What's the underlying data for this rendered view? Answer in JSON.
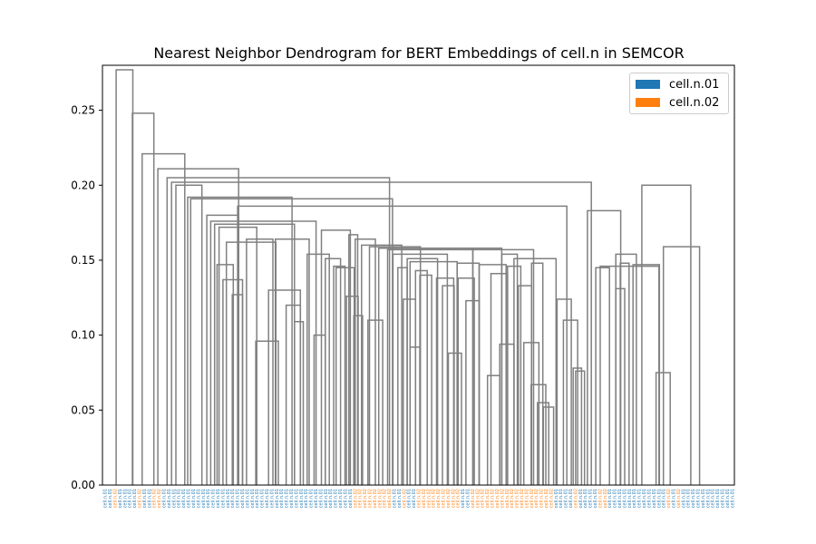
{
  "chart_data": {
    "type": "dendrogram",
    "title": "Nearest Neighbor Dendrogram for BERT Embeddings of cell.n in SEMCOR",
    "ylim": [
      0,
      0.28
    ],
    "yticks": [
      {
        "value": 0.0,
        "label": "0.00"
      },
      {
        "value": 0.05,
        "label": "0.05"
      },
      {
        "value": 0.1,
        "label": "0.10"
      },
      {
        "value": 0.15,
        "label": "0.15"
      },
      {
        "value": 0.2,
        "label": "0.20"
      },
      {
        "value": 0.25,
        "label": "0.25"
      }
    ],
    "legend": {
      "position": "top-right",
      "entries": [
        {
          "label": "cell.n.01",
          "color": "#1f77b4"
        },
        {
          "label": "cell.n.02",
          "color": "#ff7f0e"
        }
      ]
    },
    "link_color": "#808080",
    "leaf_labels": [
      "cell.n.01",
      "cell.n.01",
      "cell.n.02",
      "cell.n.01",
      "cell.n.01",
      "cell.n.01",
      "cell.n.01",
      "cell.n.02",
      "cell.n.01",
      "cell.n.01",
      "cell.n.02",
      "cell.n.02",
      "cell.n.01",
      "cell.n.01",
      "cell.n.01",
      "cell.n.01",
      "cell.n.01",
      "cell.n.01",
      "cell.n.01",
      "cell.n.01",
      "cell.n.01",
      "cell.n.01",
      "cell.n.01",
      "cell.n.01",
      "cell.n.01",
      "cell.n.01",
      "cell.n.01",
      "cell.n.01",
      "cell.n.01",
      "cell.n.01",
      "cell.n.01",
      "cell.n.01",
      "cell.n.01",
      "cell.n.01",
      "cell.n.01",
      "cell.n.01",
      "cell.n.01",
      "cell.n.01",
      "cell.n.01",
      "cell.n.01",
      "cell.n.01",
      "cell.n.01",
      "cell.n.01",
      "cell.n.01",
      "cell.n.01",
      "cell.n.01",
      "cell.n.01",
      "cell.n.01",
      "cell.n.01",
      "cell.n.01",
      "cell.n.01",
      "cell.n.02",
      "cell.n.02",
      "cell.n.02",
      "cell.n.02",
      "cell.n.02",
      "cell.n.02",
      "cell.n.02",
      "cell.n.02",
      "cell.n.01",
      "cell.n.01",
      "cell.n.02",
      "cell.n.01",
      "cell.n.01",
      "cell.n.02",
      "cell.n.02",
      "cell.n.02",
      "cell.n.02",
      "cell.n.02",
      "cell.n.02",
      "cell.n.02",
      "cell.n.02",
      "cell.n.02",
      "cell.n.01",
      "cell.n.01",
      "cell.n.02",
      "cell.n.02",
      "cell.n.02",
      "cell.n.02",
      "cell.n.02",
      "cell.n.02",
      "cell.n.02",
      "cell.n.02",
      "cell.n.02",
      "cell.n.02",
      "cell.n.02",
      "cell.n.02",
      "cell.n.02",
      "cell.n.02",
      "cell.n.02",
      "cell.n.02",
      "cell.n.02",
      "cell.n.01",
      "cell.n.01",
      "cell.n.01",
      "cell.n.01",
      "cell.n.02",
      "cell.n.01",
      "cell.n.01",
      "cell.n.01",
      "cell.n.01",
      "cell.n.02",
      "cell.n.02",
      "cell.n.01",
      "cell.n.01",
      "cell.n.01",
      "cell.n.01",
      "cell.n.01",
      "cell.n.01",
      "cell.n.01",
      "cell.n.01",
      "cell.n.01",
      "cell.n.01",
      "cell.n.01",
      "cell.n.01",
      "cell.n.02",
      "cell.n.01",
      "cell.n.02",
      "cell.n.01",
      "cell.n.01",
      "cell.n.01",
      "cell.n.01",
      "cell.n.01",
      "cell.n.01",
      "cell.n.01",
      "cell.n.01",
      "cell.n.01",
      "cell.n.01",
      "cell.n.01"
    ],
    "links": [
      {
        "x1": 2.3,
        "x2": 5.7,
        "h": 0.277
      },
      {
        "x1": 5.6,
        "x2": 10.0,
        "h": 0.248
      },
      {
        "x1": 7.6,
        "x2": 16.3,
        "h": 0.221
      },
      {
        "x1": 10.8,
        "x2": 27.3,
        "h": 0.211
      },
      {
        "x1": 12.7,
        "x2": 58.1,
        "h": 0.205
      },
      {
        "x1": 13.6,
        "x2": 99.3,
        "h": 0.202
      },
      {
        "x1": 14.5,
        "x2": 19.8,
        "h": 0.2
      },
      {
        "x1": 16.9,
        "x2": 38.2,
        "h": 0.192
      },
      {
        "x1": 17.5,
        "x2": 58.7,
        "h": 0.191
      },
      {
        "x1": 27.1,
        "x2": 94.3,
        "h": 0.186
      },
      {
        "x1": 20.8,
        "x2": 27.3,
        "h": 0.18
      },
      {
        "x1": 21.6,
        "x2": 43.1,
        "h": 0.176
      },
      {
        "x1": 22.4,
        "x2": 38.7,
        "h": 0.174
      },
      {
        "x1": 23.3,
        "x2": 31.0,
        "h": 0.172
      },
      {
        "x1": 34.8,
        "x2": 41.7,
        "h": 0.164
      },
      {
        "x1": 24.8,
        "x2": 34.9,
        "h": 0.162
      },
      {
        "x1": 44.2,
        "x2": 50.1,
        "h": 0.17
      },
      {
        "x1": 49.8,
        "x2": 51.6,
        "h": 0.167
      },
      {
        "x1": 51.1,
        "x2": 55.2,
        "h": 0.164
      },
      {
        "x1": 52.4,
        "x2": 60.6,
        "h": 0.16
      },
      {
        "x1": 54.0,
        "x2": 64.4,
        "h": 0.159
      },
      {
        "x1": 55.9,
        "x2": 81.0,
        "h": 0.158
      },
      {
        "x1": 57.7,
        "x2": 75.1,
        "h": 0.157
      },
      {
        "x1": 75.1,
        "x2": 87.5,
        "h": 0.157
      },
      {
        "x1": 58.8,
        "x2": 69.9,
        "h": 0.154
      },
      {
        "x1": 81.0,
        "x2": 84.2,
        "h": 0.154
      },
      {
        "x1": 83.5,
        "x2": 92.1,
        "h": 0.151
      },
      {
        "x1": 87.1,
        "x2": 89.4,
        "h": 0.148
      },
      {
        "x1": 107.8,
        "x2": 113.2,
        "h": 0.147
      },
      {
        "x1": 61.7,
        "x2": 67.9,
        "h": 0.151
      },
      {
        "x1": 62.3,
        "x2": 71.9,
        "h": 0.149
      },
      {
        "x1": 71.9,
        "x2": 76.4,
        "h": 0.148
      },
      {
        "x1": 76.4,
        "x2": 81.9,
        "h": 0.147
      },
      {
        "x1": 82.2,
        "x2": 84.9,
        "h": 0.146
      },
      {
        "x1": 98.5,
        "x2": 105.3,
        "h": 0.183
      },
      {
        "x1": 104.3,
        "x2": 108.5,
        "h": 0.154
      },
      {
        "x1": 105.2,
        "x2": 107.0,
        "h": 0.148
      },
      {
        "x1": 109.6,
        "x2": 119.6,
        "h": 0.2
      },
      {
        "x1": 114.0,
        "x2": 121.4,
        "h": 0.159
      },
      {
        "x1": 112.5,
        "x2": 115.4,
        "h": 0.075
      },
      {
        "x1": 101.1,
        "x2": 113.1,
        "h": 0.146
      },
      {
        "x1": 92.3,
        "x2": 95.2,
        "h": 0.124
      },
      {
        "x1": 93.6,
        "x2": 96.5,
        "h": 0.11
      },
      {
        "x1": 95.6,
        "x2": 97.3,
        "h": 0.078
      },
      {
        "x1": 96.1,
        "x2": 97.9,
        "h": 0.076
      },
      {
        "x1": 100.2,
        "x2": 103.0,
        "h": 0.145
      },
      {
        "x1": 104.3,
        "x2": 106.1,
        "h": 0.131
      },
      {
        "x1": 84.4,
        "x2": 87.1,
        "h": 0.133
      },
      {
        "x1": 85.5,
        "x2": 88.6,
        "h": 0.095
      },
      {
        "x1": 87.0,
        "x2": 90.0,
        "h": 0.067
      },
      {
        "x1": 88.3,
        "x2": 90.6,
        "h": 0.055
      },
      {
        "x1": 89.5,
        "x2": 91.6,
        "h": 0.052
      },
      {
        "x1": 78.8,
        "x2": 82.2,
        "h": 0.141
      },
      {
        "x1": 80.6,
        "x2": 83.5,
        "h": 0.094
      },
      {
        "x1": 78.1,
        "x2": 80.6,
        "h": 0.073
      },
      {
        "x1": 22.9,
        "x2": 26.2,
        "h": 0.147
      },
      {
        "x1": 24.1,
        "x2": 28.1,
        "h": 0.137
      },
      {
        "x1": 26.0,
        "x2": 28.1,
        "h": 0.127
      },
      {
        "x1": 28.9,
        "x2": 34.3,
        "h": 0.164
      },
      {
        "x1": 33.4,
        "x2": 39.9,
        "h": 0.13
      },
      {
        "x1": 37.0,
        "x2": 39.9,
        "h": 0.12
      },
      {
        "x1": 38.7,
        "x2": 40.5,
        "h": 0.109
      },
      {
        "x1": 30.8,
        "x2": 35.4,
        "h": 0.096
      },
      {
        "x1": 41.3,
        "x2": 45.8,
        "h": 0.154
      },
      {
        "x1": 42.7,
        "x2": 45.0,
        "h": 0.1
      },
      {
        "x1": 45.0,
        "x2": 48.1,
        "h": 0.151
      },
      {
        "x1": 46.7,
        "x2": 49.0,
        "h": 0.146
      },
      {
        "x1": 47.2,
        "x2": 50.9,
        "h": 0.145
      },
      {
        "x1": 49.3,
        "x2": 51.7,
        "h": 0.126
      },
      {
        "x1": 50.8,
        "x2": 52.6,
        "h": 0.113
      },
      {
        "x1": 53.7,
        "x2": 56.7,
        "h": 0.11
      },
      {
        "x1": 59.8,
        "x2": 61.7,
        "h": 0.145
      },
      {
        "x1": 60.9,
        "x2": 63.4,
        "h": 0.124
      },
      {
        "x1": 63.4,
        "x2": 65.8,
        "h": 0.143
      },
      {
        "x1": 64.3,
        "x2": 66.7,
        "h": 0.14
      },
      {
        "x1": 62.3,
        "x2": 64.3,
        "h": 0.092
      },
      {
        "x1": 67.7,
        "x2": 71.2,
        "h": 0.138
      },
      {
        "x1": 68.9,
        "x2": 71.3,
        "h": 0.133
      },
      {
        "x1": 70.1,
        "x2": 72.8,
        "h": 0.088
      },
      {
        "x1": 72.1,
        "x2": 75.4,
        "h": 0.138
      },
      {
        "x1": 73.7,
        "x2": 76.4,
        "h": 0.123
      }
    ]
  }
}
